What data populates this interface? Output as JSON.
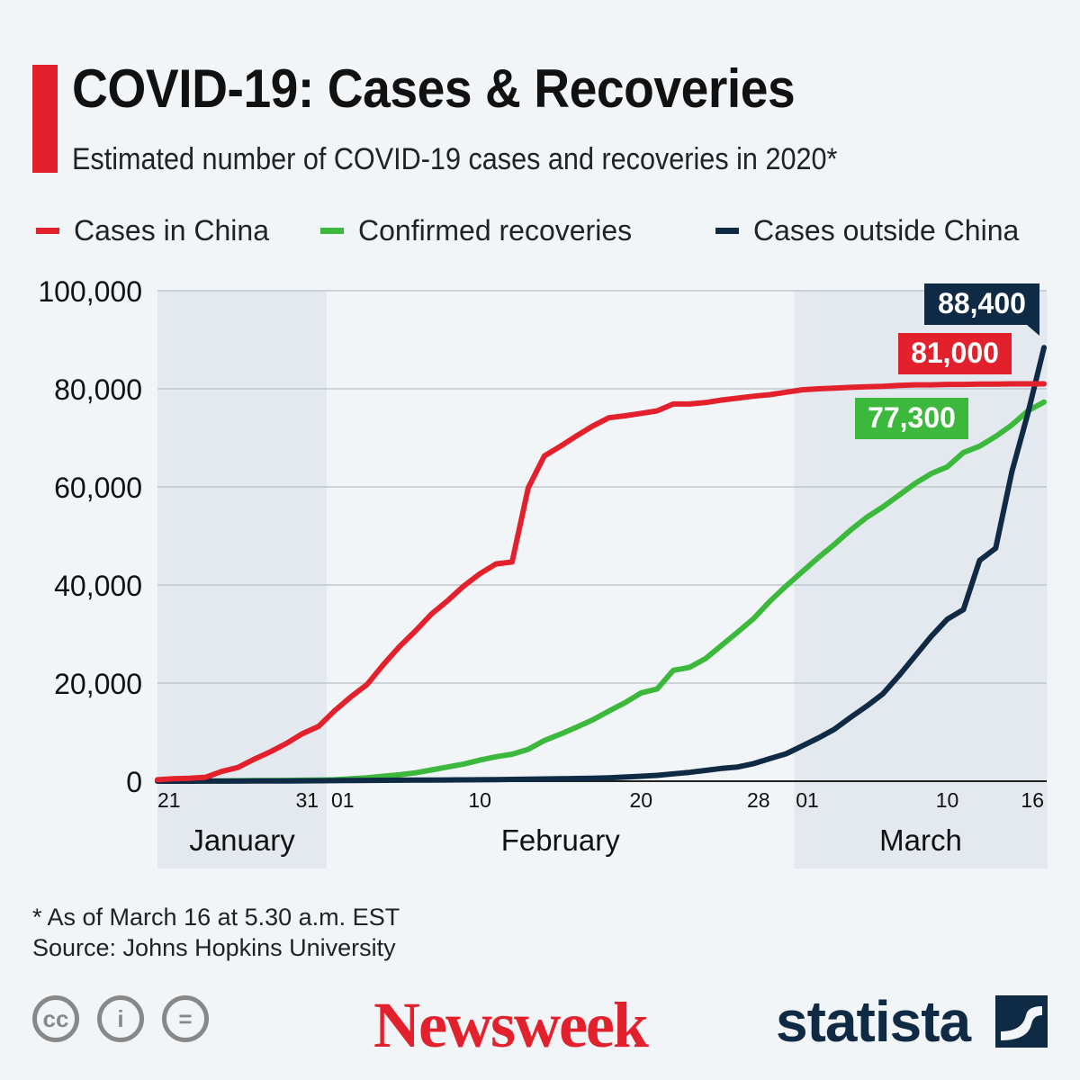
{
  "header": {
    "title": "COVID-19: Cases & Recoveries",
    "subtitle": "Estimated number of COVID-19 cases and recoveries in 2020*"
  },
  "footer": {
    "note": "* As of March 16 at 5.30 a.m. EST",
    "source": "Source: Johns Hopkins University",
    "cc": "cc",
    "by": "i",
    "nd": "=",
    "newsweek": "Newsweek",
    "statista": "statista"
  },
  "chart_data": {
    "type": "line",
    "title": "COVID-19: Cases & Recoveries",
    "x_start": "2020-01-21",
    "x_end": "2020-03-16",
    "x_tick_labels": [
      {
        "i": 0,
        "t": "21"
      },
      {
        "i": 10,
        "t": "31"
      },
      {
        "i": 11,
        "t": "01"
      },
      {
        "i": 20,
        "t": "10"
      },
      {
        "i": 30,
        "t": "20"
      },
      {
        "i": 38,
        "t": "28"
      },
      {
        "i": 39.6,
        "t": "01"
      },
      {
        "i": 49,
        "t": "10"
      },
      {
        "i": 55,
        "t": "16"
      }
    ],
    "months": [
      {
        "name": "January",
        "from": 0,
        "to": 10.5,
        "shade": true
      },
      {
        "name": "February",
        "from": 10.5,
        "to": 39.5,
        "shade": false
      },
      {
        "name": "March",
        "from": 39.5,
        "to": 55.2,
        "shade": true
      }
    ],
    "ylim": [
      0,
      100000
    ],
    "y_ticks": [
      0,
      20000,
      40000,
      60000,
      80000,
      100000
    ],
    "y_tick_labels": [
      "0",
      "20,000",
      "40,000",
      "60,000",
      "80,000",
      "100,000"
    ],
    "series": [
      {
        "name": "Cases in China",
        "color": "#e3212c",
        "label": "81,000",
        "values": [
          300,
          500,
          600,
          800,
          2000,
          2800,
          4500,
          6000,
          7700,
          9700,
          11200,
          14400,
          17200,
          19700,
          23700,
          27400,
          30600,
          34100,
          36800,
          39800,
          42300,
          44300,
          44700,
          59800,
          66300,
          68300,
          70400,
          72400,
          74100,
          74500,
          75000,
          75500,
          76900,
          76900,
          77200,
          77700,
          78100,
          78500,
          78800,
          79300,
          79800,
          80000,
          80150,
          80300,
          80400,
          80500,
          80700,
          80800,
          80800,
          80900,
          80900,
          80950,
          80980,
          81000,
          81000,
          81000
        ]
      },
      {
        "name": "Confirmed recoveries",
        "color": "#3cb93c",
        "label": "77,300",
        "values": [
          30,
          35,
          40,
          50,
          60,
          100,
          120,
          140,
          160,
          200,
          230,
          300,
          500,
          700,
          1000,
          1300,
          1700,
          2300,
          2900,
          3500,
          4300,
          5000,
          5500,
          6500,
          8300,
          9600,
          11000,
          12500,
          14300,
          16000,
          18000,
          18800,
          22600,
          23200,
          25000,
          27700,
          30400,
          33200,
          36700,
          39800,
          42700,
          45600,
          48300,
          51200,
          53800,
          55900,
          58300,
          60700,
          62700,
          64100,
          67000,
          68300,
          70300,
          72600,
          75500,
          77300
        ]
      },
      {
        "name": "Cases outside China",
        "color": "#0f2a45",
        "label": "88,400",
        "values": [
          0,
          5,
          7,
          10,
          15,
          20,
          30,
          40,
          50,
          70,
          90,
          110,
          140,
          160,
          180,
          200,
          220,
          240,
          260,
          280,
          300,
          330,
          360,
          400,
          450,
          500,
          550,
          600,
          700,
          850,
          1000,
          1200,
          1500,
          1800,
          2200,
          2600,
          2900,
          3600,
          4600,
          5600,
          7200,
          8800,
          10600,
          13000,
          15300,
          17800,
          21500,
          25500,
          29500,
          33000,
          35000,
          45000,
          47500,
          63000,
          75000,
          88400
        ]
      }
    ],
    "legend_position": "top"
  }
}
